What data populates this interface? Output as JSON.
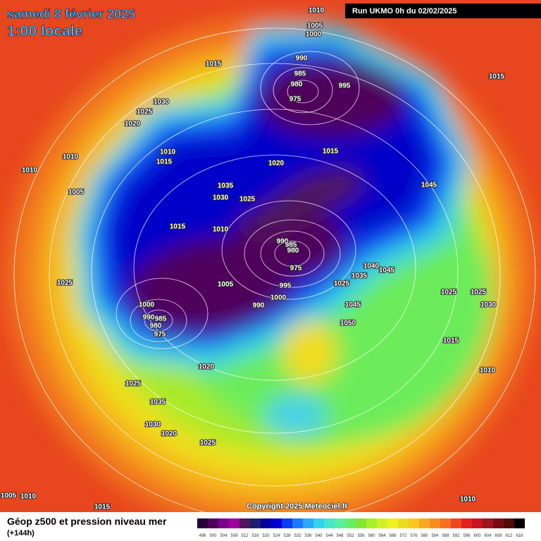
{
  "header": {
    "date": "samedi 8 février 2025",
    "time": "1:00 locale",
    "run": "Run UKMO 0h du 02/02/2025"
  },
  "map": {
    "copyright": "Copyright 2025 Meteociel.fr",
    "isobar_labels": [
      1010,
      1005,
      1000,
      1015,
      990,
      985,
      980,
      975,
      995,
      1015,
      1030,
      1025,
      1020,
      1010,
      1015,
      1010,
      1010,
      1020,
      1015,
      1045,
      1005,
      1035,
      1030,
      1025,
      1015,
      1010,
      990,
      985,
      980,
      975,
      1040,
      1045,
      1035,
      1025,
      1025,
      1005,
      995,
      1000,
      1025,
      1025,
      1030,
      990,
      1045,
      1000,
      990,
      985,
      980,
      975,
      1050,
      1015,
      1020,
      1010,
      1025,
      1035,
      1030,
      1020,
      1025,
      1005,
      1010,
      1015,
      1010
    ]
  },
  "legend": {
    "title": "Géop z500 et pression niveau mer",
    "lead": "(+144h)",
    "items": [
      {
        "value": 496,
        "color": "#28003c"
      },
      {
        "value": 500,
        "color": "#50005a"
      },
      {
        "value": 504,
        "color": "#7d008c"
      },
      {
        "value": 508,
        "color": "#a000a0"
      },
      {
        "value": 512,
        "color": "#50145a"
      },
      {
        "value": 516,
        "color": "#1e1e6e"
      },
      {
        "value": 520,
        "color": "#0000a0"
      },
      {
        "value": 524,
        "color": "#0000d2"
      },
      {
        "value": 528,
        "color": "#0a3cf0"
      },
      {
        "value": 532,
        "color": "#1e78ff"
      },
      {
        "value": 536,
        "color": "#28aaff"
      },
      {
        "value": 540,
        "color": "#32d2f0"
      },
      {
        "value": 544,
        "color": "#46e6c8"
      },
      {
        "value": 548,
        "color": "#5af0a0"
      },
      {
        "value": 552,
        "color": "#64f064"
      },
      {
        "value": 556,
        "color": "#82e632"
      },
      {
        "value": 560,
        "color": "#aaf028"
      },
      {
        "value": 564,
        "color": "#d2f028"
      },
      {
        "value": 568,
        "color": "#f0f01e"
      },
      {
        "value": 572,
        "color": "#f0dc1e"
      },
      {
        "value": 576,
        "color": "#fac81e"
      },
      {
        "value": 580,
        "color": "#faaa1e"
      },
      {
        "value": 584,
        "color": "#fa8c1e"
      },
      {
        "value": 588,
        "color": "#fa6e1e"
      },
      {
        "value": 592,
        "color": "#f0461e"
      },
      {
        "value": 596,
        "color": "#e61e1e"
      },
      {
        "value": 600,
        "color": "#c8141e"
      },
      {
        "value": 604,
        "color": "#a0141e"
      },
      {
        "value": 608,
        "color": "#780a14"
      },
      {
        "value": 612,
        "color": "#500a0a"
      },
      {
        "value": 616,
        "color": "#000000"
      }
    ]
  }
}
